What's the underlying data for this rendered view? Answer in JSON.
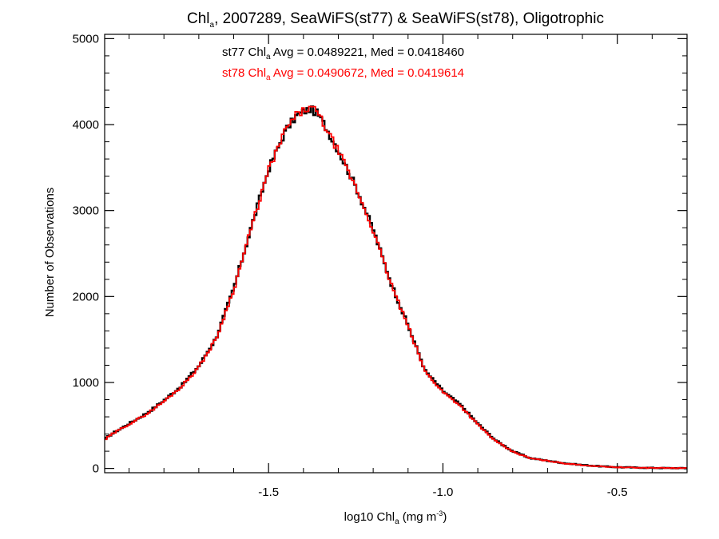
{
  "chart_data": {
    "type": "line",
    "title": {
      "prefix": "Chl",
      "sub": "a",
      "suffix": ", 2007289, SeaWiFS(st77) & SeaWiFS(st78), Oligotrophic"
    },
    "xlabel": {
      "prefix": "log10 Chl",
      "sub": "a",
      "middle": " (mg m",
      "sup": "-3",
      "suffix": ")"
    },
    "ylabel": "Number of Observations",
    "xlim": [
      -1.97,
      -0.3
    ],
    "ylim": [
      -50,
      5050
    ],
    "xticks": [
      -1.5,
      -1.0,
      -0.5
    ],
    "xtick_labels": [
      "-1.5",
      "-1.0",
      "-0.5"
    ],
    "yticks": [
      0,
      1000,
      2000,
      3000,
      4000,
      5000
    ],
    "ytick_labels": [
      "0",
      "1000",
      "2000",
      "3000",
      "4000",
      "5000"
    ],
    "grid": false,
    "step": "histogram",
    "series": [
      {
        "name": "st77",
        "color": "#000000",
        "x": [
          -1.97,
          -1.95,
          -1.9,
          -1.85,
          -1.8,
          -1.75,
          -1.7,
          -1.65,
          -1.6,
          -1.55,
          -1.5,
          -1.45,
          -1.42,
          -1.4,
          -1.38,
          -1.36,
          -1.34,
          -1.3,
          -1.25,
          -1.2,
          -1.15,
          -1.1,
          -1.05,
          -1.0,
          -0.95,
          -0.9,
          -0.85,
          -0.8,
          -0.75,
          -0.7,
          -0.65,
          -0.6,
          -0.55,
          -0.5,
          -0.45,
          -0.4,
          -0.35,
          -0.3
        ],
        "y": [
          340,
          400,
          520,
          640,
          790,
          960,
          1190,
          1520,
          2090,
          2800,
          3480,
          3940,
          4100,
          4150,
          4180,
          4130,
          4000,
          3700,
          3280,
          2780,
          2170,
          1660,
          1130,
          900,
          740,
          520,
          330,
          200,
          120,
          90,
          60,
          40,
          25,
          15,
          10,
          6,
          4,
          3
        ]
      },
      {
        "name": "st78",
        "color": "#ff0000",
        "x": [
          -1.97,
          -1.95,
          -1.9,
          -1.85,
          -1.8,
          -1.75,
          -1.7,
          -1.65,
          -1.6,
          -1.55,
          -1.5,
          -1.45,
          -1.42,
          -1.4,
          -1.38,
          -1.36,
          -1.34,
          -1.3,
          -1.25,
          -1.2,
          -1.15,
          -1.1,
          -1.05,
          -1.0,
          -0.95,
          -0.9,
          -0.85,
          -0.8,
          -0.75,
          -0.7,
          -0.65,
          -0.6,
          -0.55,
          -0.5,
          -0.45,
          -0.4,
          -0.35,
          -0.3
        ],
        "y": [
          330,
          395,
          515,
          630,
          780,
          950,
          1180,
          1510,
          2080,
          2790,
          3470,
          3950,
          4110,
          4160,
          4200,
          4140,
          3990,
          3690,
          3270,
          2770,
          2160,
          1650,
          1120,
          890,
          730,
          510,
          320,
          195,
          118,
          88,
          58,
          38,
          24,
          14,
          9,
          6,
          4,
          3
        ]
      }
    ],
    "annotations": [
      {
        "color": "#000000",
        "prefix": "st77 Chl",
        "sub": "a",
        "suffix": " Avg = 0.0489221, Med = 0.0418460"
      },
      {
        "color": "#ff0000",
        "prefix": "st78 Chl",
        "sub": "a",
        "suffix": " Avg = 0.0490672, Med = 0.0419614"
      }
    ]
  }
}
